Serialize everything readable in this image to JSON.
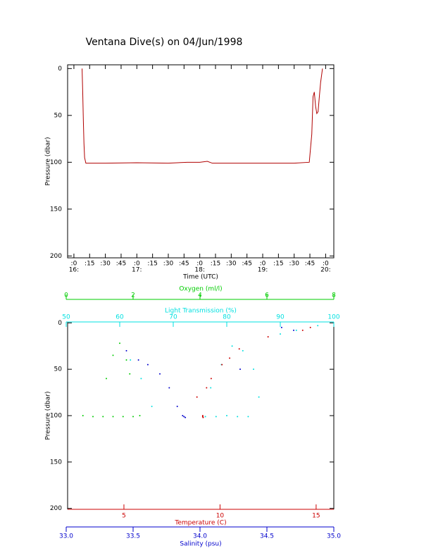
{
  "chart_data": [
    {
      "type": "line",
      "title": "Ventana Dive(s) on 04/Jun/1998",
      "x_label": "Time (UTC)",
      "y_label": "Pressure (dbar)",
      "xlim": [
        15.9,
        20.13
      ],
      "xticks": [
        {
          "value": 16,
          "label": ":0"
        },
        {
          "value": 16.25,
          "label": ":15"
        },
        {
          "value": 16.5,
          "label": ":30"
        },
        {
          "value": 16.75,
          "label": ":45"
        },
        {
          "value": 17,
          "label": ":0"
        },
        {
          "value": 17.25,
          "label": ":15"
        },
        {
          "value": 17.5,
          "label": ":30"
        },
        {
          "value": 17.75,
          "label": ":45"
        },
        {
          "value": 18,
          "label": ":0"
        },
        {
          "value": 18.25,
          "label": ":15"
        },
        {
          "value": 18.5,
          "label": ":30"
        },
        {
          "value": 18.75,
          "label": ":45"
        },
        {
          "value": 19,
          "label": ":0"
        },
        {
          "value": 19.25,
          "label": ":15"
        },
        {
          "value": 19.5,
          "label": ":30"
        },
        {
          "value": 19.75,
          "label": ":45"
        },
        {
          "value": 20,
          "label": ":0"
        }
      ],
      "xticks_hours": [
        {
          "value": 16,
          "label": "16:"
        },
        {
          "value": 17,
          "label": "17:"
        },
        {
          "value": 18,
          "label": "18:"
        },
        {
          "value": 19,
          "label": "19:"
        },
        {
          "value": 20,
          "label": "20:"
        }
      ],
      "ylim": [
        -4,
        202
      ],
      "yticks": [
        0,
        50,
        100,
        150,
        200
      ],
      "y_reversed": true,
      "series": [
        {
          "color": "#b00000",
          "x": [
            16.13,
            16.14,
            16.15,
            16.16,
            16.17,
            16.19,
            16.5,
            17,
            17.5,
            17.8,
            18,
            18.12,
            18.2,
            18.5,
            19,
            19.5,
            19.74,
            19.78,
            19.8,
            19.82,
            19.84,
            19.86,
            19.88,
            19.9,
            19.92,
            19.95
          ],
          "values": [
            0,
            25,
            55,
            80,
            95,
            101,
            101,
            100.5,
            101,
            100,
            100,
            99,
            101,
            101,
            101,
            101,
            100,
            70,
            30,
            25,
            40,
            48,
            46,
            30,
            15,
            0
          ]
        }
      ]
    },
    {
      "type": "scatter",
      "y_label": "Pressure (dbar)",
      "ylim": [
        -1,
        201
      ],
      "yticks": [
        0,
        50,
        100,
        150,
        200
      ],
      "y_reversed": true,
      "series": [
        {
          "x_label": "Oxygen (ml/l)",
          "color": "#00cc00",
          "side": "top",
          "xlim": [
            0,
            8
          ],
          "xticks": [
            0,
            2,
            4,
            6,
            8
          ],
          "x": [
            0.5,
            0.8,
            1.1,
            1.4,
            1.7,
            2.0,
            2.2,
            1.2,
            1.4,
            1.6,
            1.8,
            1.9
          ],
          "values": [
            100,
            101,
            101,
            101,
            101,
            101,
            100,
            60,
            35,
            22,
            40,
            55
          ]
        },
        {
          "x_label": "Light Transmission (%)",
          "color": "#00e0e0",
          "side": "top",
          "xlim": [
            50,
            100
          ],
          "xticks": [
            50,
            60,
            70,
            80,
            90,
            100
          ],
          "x": [
            76,
            78,
            80,
            82,
            84,
            77,
            79,
            81,
            83,
            85,
            86,
            62,
            64,
            66,
            90,
            93,
            97
          ],
          "values": [
            101,
            101,
            100,
            101,
            101,
            70,
            45,
            25,
            30,
            50,
            80,
            40,
            60,
            90,
            12,
            8,
            3
          ]
        },
        {
          "x_label": "Temperature (C)",
          "color": "#cc0000",
          "side": "bottom",
          "xlim": [
            2.07,
            15.92
          ],
          "xticks": [
            5,
            10,
            15
          ],
          "x": [
            9.1,
            9.1,
            9.12,
            8.8,
            9.3,
            9.54,
            10.1,
            10.5,
            11.0,
            12.5,
            14.3,
            14.7
          ],
          "values": [
            100,
            101,
            102,
            80,
            70,
            60,
            45,
            38,
            28,
            15,
            8,
            5
          ]
        },
        {
          "x_label": "Salinity (psu)",
          "color": "#0000cc",
          "side": "bottom",
          "xlim": [
            33,
            35
          ],
          "xticks": [
            {
              "value": 33,
              "label": "33.0"
            },
            33.5,
            {
              "value": 34,
              "label": "34.0"
            },
            34.5,
            {
              "value": 35,
              "label": "35.0"
            }
          ],
          "x": [
            33.87,
            33.88,
            33.89,
            33.54,
            33.61,
            33.7,
            33.77,
            33.83,
            33.45,
            34.3,
            34.61,
            34.7
          ],
          "values": [
            100,
            101,
            102,
            40,
            45,
            55,
            70,
            90,
            30,
            50,
            5,
            8
          ]
        }
      ]
    }
  ]
}
